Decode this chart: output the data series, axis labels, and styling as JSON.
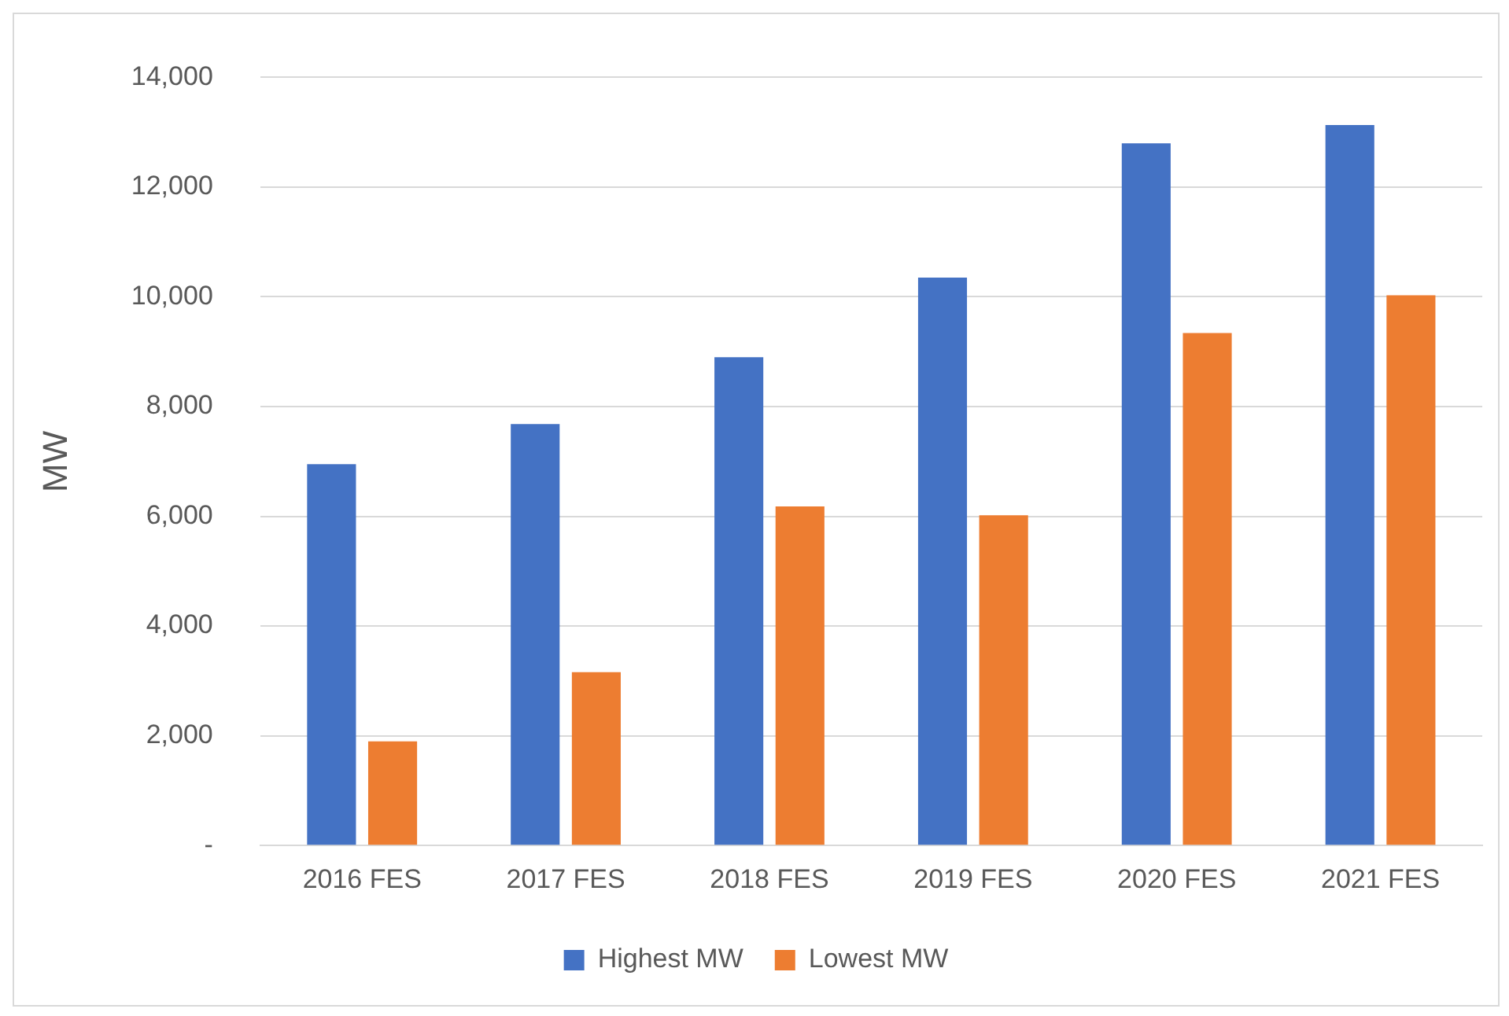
{
  "chart_data": {
    "type": "bar",
    "ylabel": "MW",
    "categories": [
      "2016 FES",
      "2017 FES",
      "2018 FES",
      "2019 FES",
      "2020 FES",
      "2021 FES"
    ],
    "series": [
      {
        "name": "Highest MW",
        "color": "#4472c4",
        "values": [
          6950,
          7680,
          8900,
          10350,
          12800,
          13130
        ]
      },
      {
        "name": "Lowest MW",
        "color": "#ed7d31",
        "values": [
          1900,
          3160,
          6180,
          6020,
          9340,
          10030
        ]
      }
    ],
    "ylim": [
      0,
      14000
    ],
    "yticks": [
      {
        "value": 0,
        "label": "-"
      },
      {
        "value": 2000,
        "label": "2,000"
      },
      {
        "value": 4000,
        "label": "4,000"
      },
      {
        "value": 6000,
        "label": "6,000"
      },
      {
        "value": 8000,
        "label": "8,000"
      },
      {
        "value": 10000,
        "label": "10,000"
      },
      {
        "value": 12000,
        "label": "12,000"
      },
      {
        "value": 14000,
        "label": "14,000"
      }
    ],
    "grid": "y",
    "legend": "bottom"
  }
}
